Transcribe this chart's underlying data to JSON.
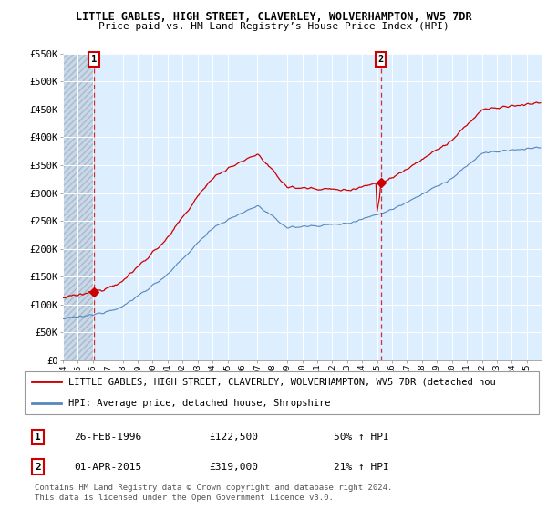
{
  "title1": "LITTLE GABLES, HIGH STREET, CLAVERLEY, WOLVERHAMPTON, WV5 7DR",
  "title2": "Price paid vs. HM Land Registry’s House Price Index (HPI)",
  "ylim": [
    0,
    550000
  ],
  "yticks": [
    0,
    50000,
    100000,
    150000,
    200000,
    250000,
    300000,
    350000,
    400000,
    450000,
    500000,
    550000
  ],
  "ytick_labels": [
    "£0",
    "£50K",
    "£100K",
    "£150K",
    "£200K",
    "£250K",
    "£300K",
    "£350K",
    "£400K",
    "£450K",
    "£500K",
    "£550K"
  ],
  "sale1_year": 1996,
  "sale1_month": 2,
  "sale1_price": 122500,
  "sale2_year": 2015,
  "sale2_month": 4,
  "sale2_price": 319000,
  "legend_line1": "LITTLE GABLES, HIGH STREET, CLAVERLEY, WOLVERHAMPTON, WV5 7DR (detached hou",
  "legend_line2": "HPI: Average price, detached house, Shropshire",
  "annotation1_date": "26-FEB-1996",
  "annotation1_price": "£122,500",
  "annotation1_hpi": "50% ↑ HPI",
  "annotation2_date": "01-APR-2015",
  "annotation2_price": "£319,000",
  "annotation2_hpi": "21% ↑ HPI",
  "footer": "Contains HM Land Registry data © Crown copyright and database right 2024.\nThis data is licensed under the Open Government Licence v3.0.",
  "red_color": "#cc0000",
  "blue_color": "#5588bb",
  "bg_color": "#ddeeff",
  "grid_color": "#ffffff",
  "hatch_color": "#aabbcc"
}
